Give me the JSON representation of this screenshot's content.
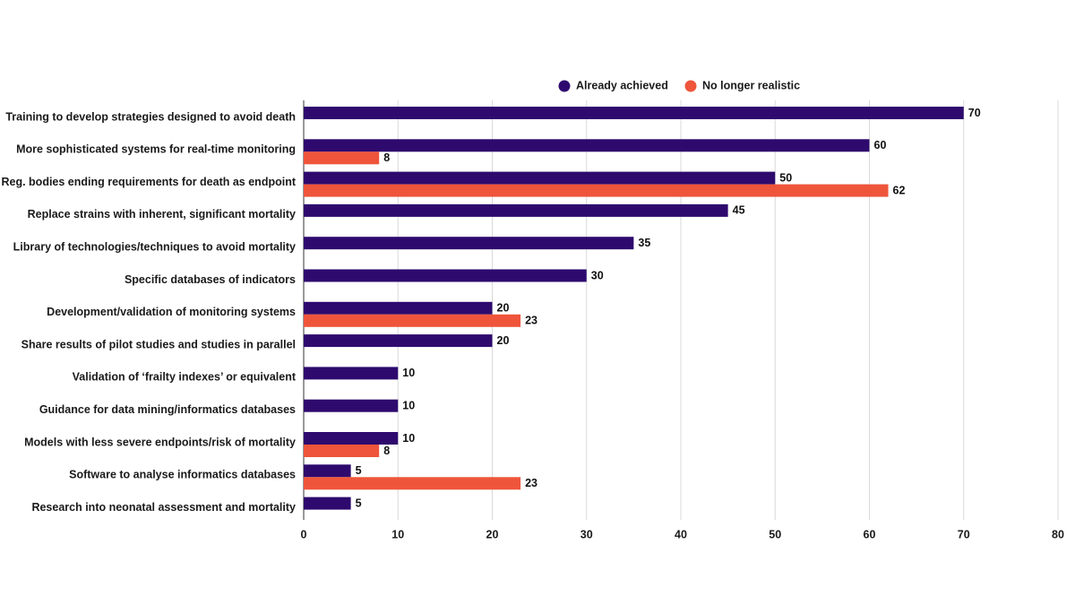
{
  "chart_data": {
    "type": "bar",
    "orientation": "horizontal",
    "title": "",
    "xlabel": "",
    "ylabel": "",
    "xlim": [
      0,
      80
    ],
    "ticks": [
      0,
      10,
      20,
      30,
      40,
      50,
      60,
      70,
      80
    ],
    "grid": true,
    "legend_position": "top",
    "categories": [
      "Training to develop strategies designed to avoid death",
      "More sophisticated systems for real-time monitoring",
      "Reg. bodies ending requirements for death as endpoint",
      "Replace strains with inherent, significant mortality",
      "Library of technologies/techniques to avoid mortality",
      "Specific databases of indicators",
      "Development/validation of monitoring systems",
      "Share results of pilot studies and studies in parallel",
      "Validation of ‘frailty indexes’ or equivalent",
      "Guidance for data mining/informatics databases",
      "Models with less severe endpoints/risk of mortality",
      "Software to analyse informatics databases",
      "Research into neonatal assessment and mortality"
    ],
    "series": [
      {
        "name": "Already achieved",
        "color": "#2e0a6e",
        "values": [
          70,
          60,
          50,
          45,
          35,
          30,
          20,
          20,
          10,
          10,
          10,
          5,
          5
        ]
      },
      {
        "name": "No longer realistic",
        "color": "#ee553b",
        "values": [
          null,
          8,
          62,
          null,
          null,
          null,
          23,
          null,
          null,
          null,
          8,
          23,
          null
        ]
      }
    ]
  }
}
